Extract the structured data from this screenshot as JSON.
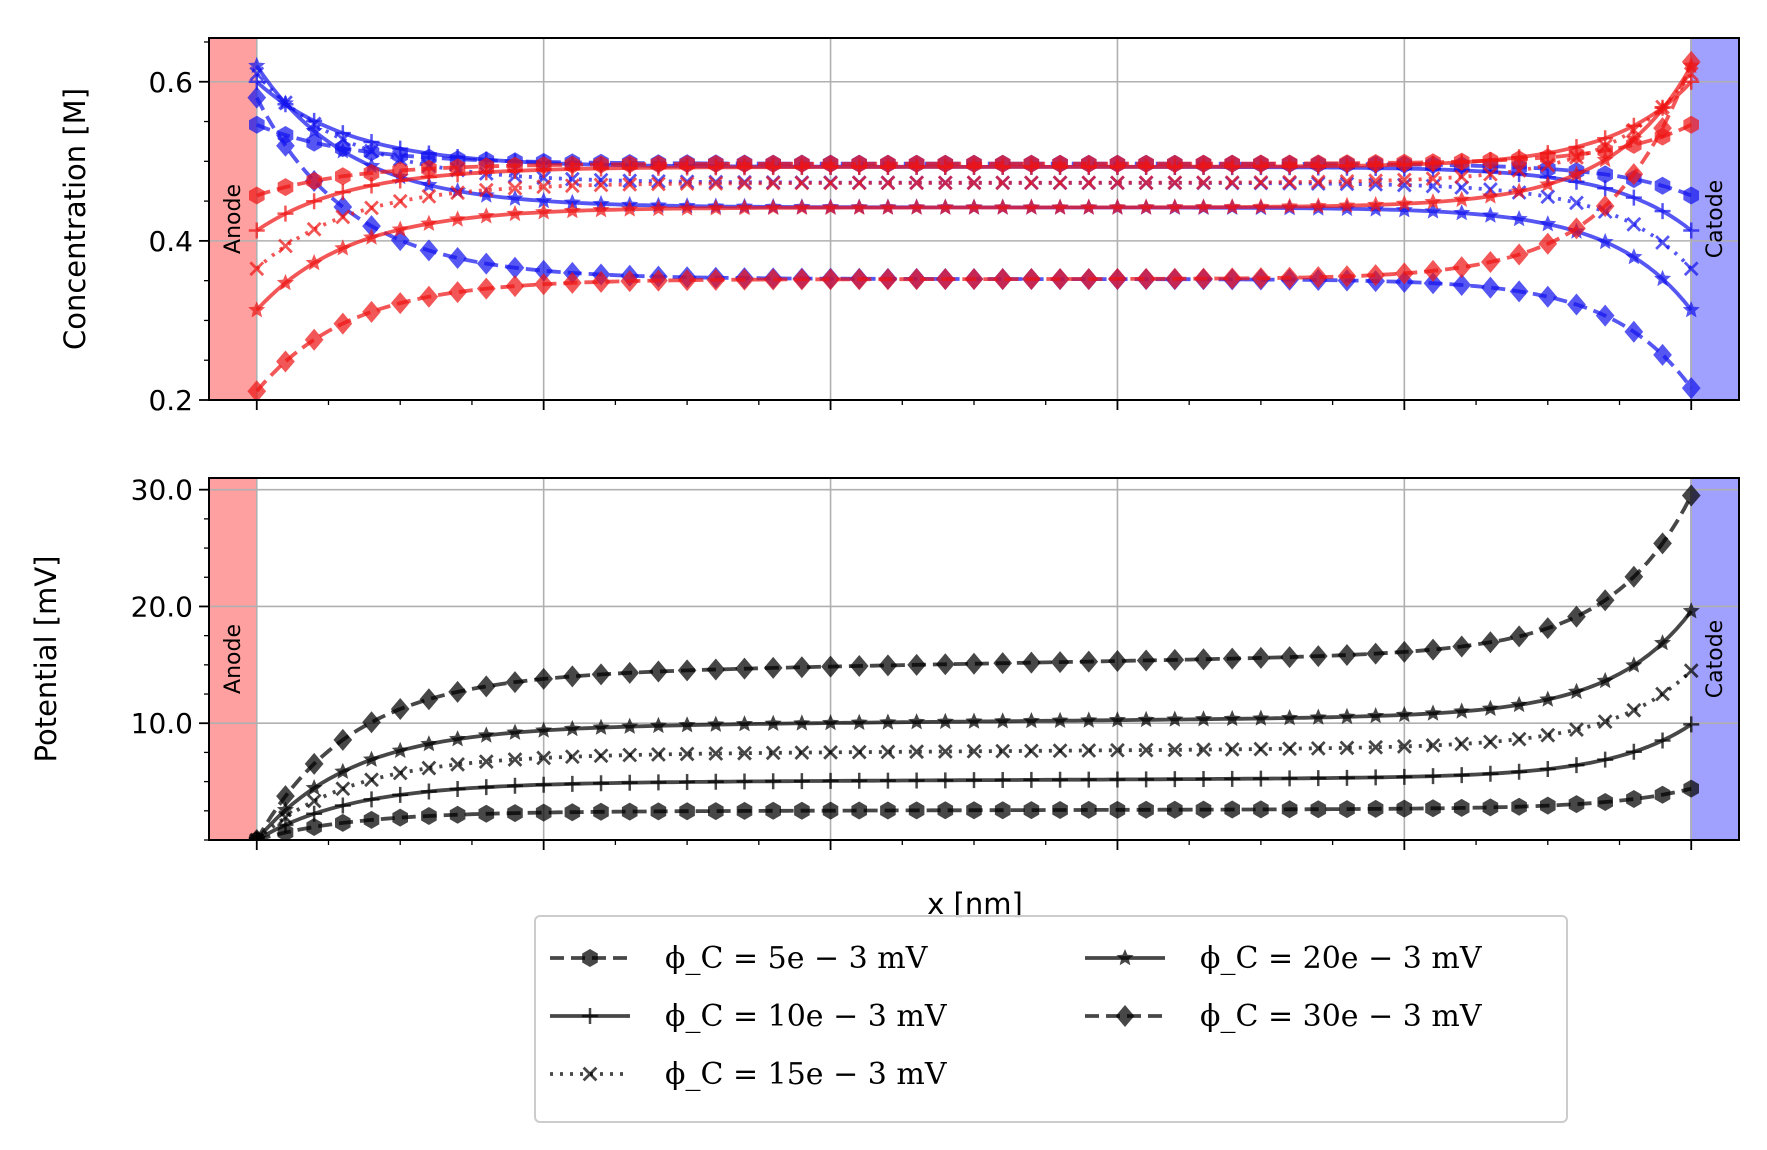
{
  "chart_data": [
    {
      "type": "line",
      "ylabel": "Concentration [M]",
      "xlabel": "",
      "ylim": [
        0.2,
        0.655
      ],
      "yticks": [
        0.2,
        0.4,
        0.6
      ],
      "ytick_labels": [
        "0.2",
        "0.4",
        "0.6"
      ],
      "xticks": [
        0,
        20,
        40,
        60,
        80,
        100
      ],
      "xlim": [
        -3.33,
        103.33
      ],
      "grid": true,
      "regions": [
        {
          "label": "Anode",
          "x_start": -3.33,
          "x_end": 0,
          "color": "#ffa0a0"
        },
        {
          "label": "Catode",
          "x_start": 100,
          "x_end": 103.33,
          "color": "#a0a0ff"
        }
      ],
      "colors": {
        "cation": "#1515ee",
        "anion": "#ee1515"
      },
      "series": [
        {
          "phi_C": 5,
          "marker": "hexagon",
          "dash": "dash",
          "cation_left": 0.546,
          "anion_left": 0.457,
          "bulk": 0.497,
          "cation_right": 0.457,
          "anion_right": 0.546
        },
        {
          "phi_C": 10,
          "marker": "plus",
          "dash": "solid",
          "cation_left": 0.6,
          "anion_left": 0.413,
          "bulk": 0.493,
          "cation_right": 0.413,
          "anion_right": 0.6
        },
        {
          "phi_C": 15,
          "marker": "x",
          "dash": "dotted",
          "cation_left": 0.61,
          "anion_left": 0.365,
          "bulk": 0.473,
          "cation_right": 0.365,
          "anion_right": 0.61
        },
        {
          "phi_C": 20,
          "marker": "star",
          "dash": "solid",
          "cation_left": 0.62,
          "anion_left": 0.313,
          "bulk": 0.442,
          "cation_right": 0.313,
          "anion_right": 0.62
        },
        {
          "phi_C": 30,
          "marker": "diamond",
          "dash": "dash",
          "cation_left": 0.58,
          "anion_left": 0.211,
          "bulk": 0.352,
          "cation_right": 0.215,
          "anion_right": 0.625
        }
      ]
    },
    {
      "type": "line",
      "ylabel": "Potential [mV]",
      "xlabel": "x [nm]",
      "ylim": [
        0,
        31
      ],
      "yticks": [
        10,
        20,
        30
      ],
      "ytick_labels": [
        "10.0",
        "20.0",
        "30.0"
      ],
      "xticks": [
        0,
        20,
        40,
        60,
        80,
        100
      ],
      "xlim": [
        -3.33,
        103.33
      ],
      "grid": true,
      "regions": [
        {
          "label": "Anode",
          "x_start": -3.33,
          "x_end": 0,
          "color": "#ffa0a0"
        },
        {
          "label": "Catode",
          "x_start": 100,
          "x_end": 103.33,
          "color": "#a0a0ff"
        }
      ],
      "series": [
        {
          "phi_C": 5,
          "marker": "hexagon",
          "dash": "dash",
          "plateau_start": 2.4,
          "plateau_end": 2.7,
          "end": 4.4
        },
        {
          "phi_C": 10,
          "marker": "plus",
          "dash": "solid",
          "plateau_start": 4.85,
          "plateau_end": 5.4,
          "end": 9.9
        },
        {
          "phi_C": 15,
          "marker": "x",
          "dash": "dotted",
          "plateau_start": 7.2,
          "plateau_end": 8.0,
          "end": 14.5
        },
        {
          "phi_C": 20,
          "marker": "star",
          "dash": "solid",
          "plateau_start": 9.6,
          "plateau_end": 10.7,
          "end": 19.6
        },
        {
          "phi_C": 30,
          "marker": "diamond",
          "dash": "dash",
          "plateau_start": 14.0,
          "plateau_end": 16.2,
          "end": 29.5
        }
      ]
    }
  ],
  "legend": {
    "placement": "bottom-center",
    "columns": 2,
    "entries": [
      {
        "label": "ϕ_C = 5e − 3 mV",
        "marker": "hexagon",
        "dash": "dash"
      },
      {
        "label": "ϕ_C = 10e − 3 mV",
        "marker": "plus",
        "dash": "solid"
      },
      {
        "label": "ϕ_C = 15e − 3 mV",
        "marker": "x",
        "dash": "dotted"
      },
      {
        "label": "ϕ_C = 20e − 3 mV",
        "marker": "star",
        "dash": "solid"
      },
      {
        "label": "ϕ_C = 30e − 3 mV",
        "marker": "diamond",
        "dash": "dash"
      }
    ]
  },
  "region_labels": {
    "anode": "Anode",
    "cathode": "Catode"
  }
}
